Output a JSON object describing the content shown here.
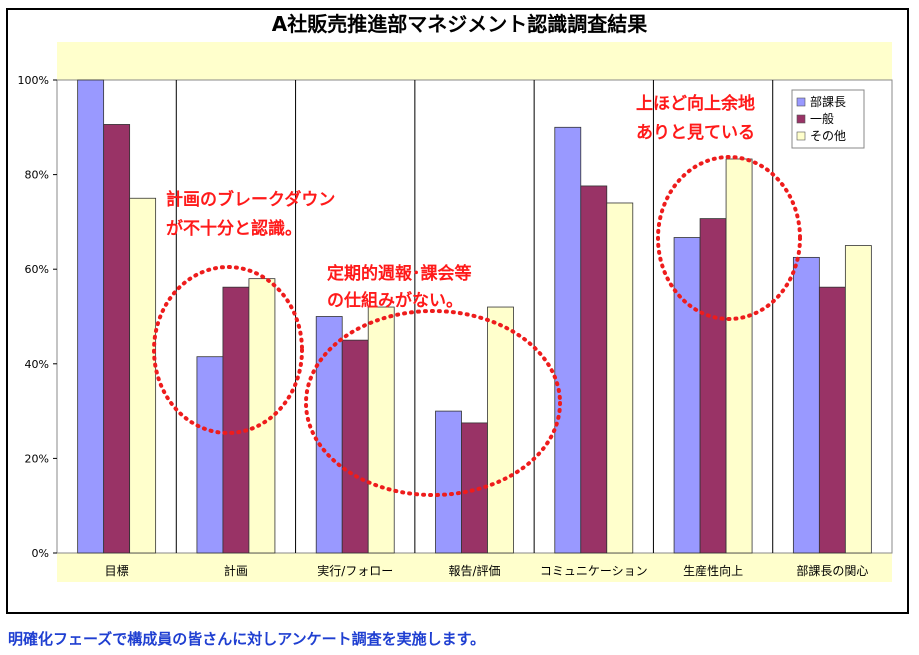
{
  "chart_data": {
    "type": "bar",
    "title": "A社販売推進部マネジメント認識調査結果",
    "categories": [
      "目標",
      "計画",
      "実行/フォロー",
      "報告/評価",
      "コミュニケーション",
      "生産性向上",
      "部課長の関心"
    ],
    "series": [
      {
        "name": "部課長",
        "color": "#9999ff",
        "values": [
          100,
          41.5,
          50,
          30,
          90,
          66.7,
          62.5
        ]
      },
      {
        "name": "一般",
        "color": "#993366",
        "values": [
          90.6,
          56.2,
          45,
          27.5,
          77.6,
          70.7,
          56.2
        ]
      },
      {
        "name": "その他",
        "color": "#ffffcc",
        "values": [
          75,
          58,
          52,
          52,
          74,
          83.3,
          65
        ]
      }
    ],
    "ylim": [
      0,
      100
    ],
    "yticks": [
      "0%",
      "20%",
      "40%",
      "60%",
      "80%",
      "100%"
    ],
    "legend_position": "top-right",
    "plot_background": "#ffffcc",
    "annotations": [
      {
        "lines": [
          "計画のブレークダウン",
          "が不十分と認識。"
        ]
      },
      {
        "lines": [
          "定期的週報･課会等",
          "の仕組みがない。"
        ]
      },
      {
        "lines": [
          "上ほど向上余地",
          "ありと見ている"
        ]
      }
    ],
    "annotation_color": "#ff1a1a"
  },
  "footer": "明確化フェーズで構成員の皆さんに対しアンケート調査を実施します。"
}
